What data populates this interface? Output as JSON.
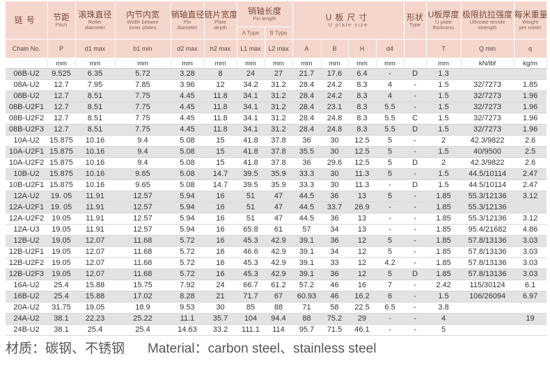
{
  "header": {
    "groups": [
      {
        "zh": "链号"
      },
      {
        "zh": "节距",
        "en": "Pitch"
      },
      {
        "zh": "滚珠直径",
        "en": "Roller\ndiameter"
      },
      {
        "zh": "内节内宽",
        "en": "Width betwee\ninner plates"
      },
      {
        "zh": "销轴直径",
        "en": "Pin\ndiameter"
      },
      {
        "zh": "链片宽度",
        "en": "Plate\ndepth"
      },
      {
        "zh": "销轴长度",
        "en": "Pin length"
      },
      {
        "zh": "U板尺寸",
        "en": "U plate size"
      },
      {
        "zh": "形状",
        "en": "Type"
      },
      {
        "zh": "U板厚度",
        "en": "U plate\nthickness"
      },
      {
        "zh": "极限抗拉强度",
        "en": "Ultimate tensile\nstrength"
      },
      {
        "zh": "每米重量",
        "en": "Weight\nper meter"
      }
    ],
    "sub": [
      "A Type",
      "B Type"
    ],
    "symbols": [
      "Chain No.",
      "P",
      "d1 max",
      "b1 min",
      "d2 max",
      "h2 max",
      "L1 max",
      "L2 max",
      "A",
      "B",
      "H",
      "d4",
      "",
      "T",
      "Q min",
      "q"
    ],
    "units": [
      "",
      "mm",
      "mm",
      "mm",
      "mm",
      "mm",
      "mm",
      "mm",
      "mm",
      "mm",
      "mm",
      "mm",
      "",
      "mm",
      "kN/lbf",
      "kg/m"
    ]
  },
  "table": {
    "rows": [
      [
        "06B-U2",
        "9.525",
        "6.35",
        "5.72",
        "3.28",
        "8",
        "24",
        "27",
        "21.7",
        "17.6",
        "6.4",
        "-",
        "D",
        "1.3",
        "",
        ""
      ],
      [
        "08A-U2",
        "12.7",
        "7.95",
        "7.85",
        "3.96",
        "12",
        "34.2",
        "31.2",
        "28.4",
        "24.2",
        "8.3",
        "4",
        "-",
        "1.5",
        "32/7273",
        "1.85"
      ],
      [
        "08B-U2",
        "12.7",
        "8.51",
        "7.75",
        "4.45",
        "11.8",
        "34.1",
        "31.2",
        "28.4",
        "24.2",
        "8.3",
        "4",
        "-",
        "1.5",
        "32/7273",
        "1.96"
      ],
      [
        "08B-U2F1",
        "12.7",
        "8.51",
        "7.75",
        "4.45",
        "11.8",
        "34.1",
        "31.2",
        "28.4",
        "23.1",
        "8.3",
        "5.5",
        "-",
        "1.5",
        "32/7273",
        "1.96"
      ],
      [
        "08B-U2F2",
        "12.7",
        "8.51",
        "7.75",
        "4.45",
        "11.8",
        "34.1",
        "31.2",
        "28.4",
        "24.8",
        "8.3",
        "5.5",
        "C",
        "1.5",
        "32/7273",
        "1.96"
      ],
      [
        "08B-U2F3",
        "12.7",
        "8.51",
        "7.75",
        "4.45",
        "11.8",
        "34.1",
        "31.2",
        "28.4",
        "24.8",
        "8.3",
        "5.5",
        "D",
        "1.5",
        "32/7273",
        "1.96"
      ],
      [
        "10A-U2",
        "15.875",
        "10.16",
        "9.4",
        "5.08",
        "15",
        "41.8",
        "37.8",
        "36",
        "30",
        "12.5",
        "5",
        "-",
        "2",
        "42.3/9822",
        "2.6"
      ],
      [
        "10A-U2F1",
        "15.875",
        "10.16",
        "9.4",
        "5.08",
        "15",
        "41.8",
        "37.8",
        "35.5",
        "30",
        "12.5",
        "5",
        "-",
        "1.5",
        "40/9500",
        "2.5"
      ],
      [
        "10A-U2F2",
        "15.875",
        "10.16",
        "9.4",
        "5.08",
        "15",
        "41.8",
        "37.8",
        "36",
        "29.6",
        "12.5",
        "5",
        "D",
        "2",
        "42.3/9822",
        "2.6"
      ],
      [
        "10B-U2",
        "15.875",
        "10.16",
        "9.65",
        "5.08",
        "14.7",
        "39.5",
        "35.9",
        "33.3",
        "30",
        "11.3",
        "5",
        "-",
        "1.5",
        "44.5/10114",
        "2.47"
      ],
      [
        "10B-U2F1",
        "15.875",
        "10.16",
        "9.65",
        "5.08",
        "14.7",
        "39.5",
        "35.9",
        "33.3",
        "30",
        "11.3",
        "-",
        "D",
        "1.5",
        "44.5/10114",
        "2.47"
      ],
      [
        "12A-U2",
        "19. 05",
        "11.91",
        "12.57",
        "5.94",
        "16",
        "51",
        "47",
        "44.5",
        "36",
        "13",
        "5",
        "-",
        "1.85",
        "55.3/12136",
        "3.12"
      ],
      [
        "12A-U2F1",
        "19. 05",
        "11.91",
        "12.57",
        "5.94",
        "16",
        "51",
        "47",
        "44.5",
        "33.7",
        "26.9",
        "-",
        "-",
        "1.85",
        "55.3/12136",
        ""
      ],
      [
        "12A-U2F2",
        "19.05",
        "11.91",
        "12.57",
        "5.94",
        "16",
        "51",
        "47",
        "44.5",
        "36",
        "13",
        "-",
        "-",
        "1.85",
        "55.3/12136",
        "3.12"
      ],
      [
        "12A-U3",
        "19.05",
        "11.91",
        "12.57",
        "5.94",
        "16",
        "65.8",
        "61",
        "57",
        "34",
        "13",
        "-",
        "-",
        "1.85",
        "95.4/21682",
        "4.86"
      ],
      [
        "12B-U2",
        "19.05",
        "12.07",
        "11.68",
        "5.72",
        "16",
        "45.3",
        "42.9",
        "39.1",
        "36",
        "12",
        "5",
        "-",
        "1.85",
        "57.8/13136",
        "3.03"
      ],
      [
        "12B-U2F1",
        "19.05",
        "12.07",
        "11.68",
        "5.72",
        "16",
        "46.6",
        "42.9",
        "39.1",
        "34",
        "12",
        "5",
        "-",
        "1.85",
        "57.8/13136",
        "3.03"
      ],
      [
        "12B-U2F2",
        "19.05",
        "12.07",
        "11.68",
        "5.72",
        "16",
        "45.3",
        "42.9",
        "39.1",
        "33",
        "12",
        "4.2",
        "-",
        "1.85",
        "57.8/13136",
        "3.03"
      ],
      [
        "12B-U2F3",
        "19.05",
        "12.07",
        "11.68",
        "5.72",
        "16",
        "45.3",
        "42.9",
        "39.1",
        "36",
        "12",
        "5",
        "D",
        "1.85",
        "57.8/13136",
        "3.03"
      ],
      [
        "16A-U2",
        "25.4",
        "15.88",
        "15.75",
        "7.92",
        "24",
        "66.7",
        "61.2",
        "57.2",
        "46",
        "16",
        "7",
        "-",
        "2.42",
        "115/30124",
        "6.1"
      ],
      [
        "16B-U2",
        "25.4",
        "15.88",
        "17.02",
        "8.28",
        "21",
        "71.7",
        "67",
        "60.93",
        "46",
        "16.2",
        "6",
        "-",
        "1.5",
        "106/26094",
        "6.97"
      ],
      [
        "20A-U2",
        "31.75",
        "19.05",
        "18.9",
        "9.53",
        "30",
        "85",
        "88",
        "71",
        "58",
        "22.5",
        "6.5",
        "-",
        "3.8",
        "",
        ""
      ],
      [
        "24A-U2",
        "38.1",
        "22.23",
        "25.22",
        "11.1",
        "35.7",
        "104",
        "94.4",
        "88",
        "75.2",
        "29",
        "-",
        "-",
        "4",
        "",
        "19"
      ],
      [
        "24B-U2",
        "38.1",
        "25.4",
        "25.4",
        "14.63",
        "33.2",
        "111.1",
        "114",
        "95.7",
        "71.5",
        "46.1",
        "-",
        "-",
        "5",
        "",
        ""
      ]
    ]
  },
  "footer": {
    "zh": "材质：碳钢、不锈钢",
    "en": "Material：carbon steel、stainless steel"
  },
  "colors": {
    "header_bg": "#f5d6cc",
    "header_text": "#7a4a3c",
    "shaded_row": "#e3e3e3"
  }
}
